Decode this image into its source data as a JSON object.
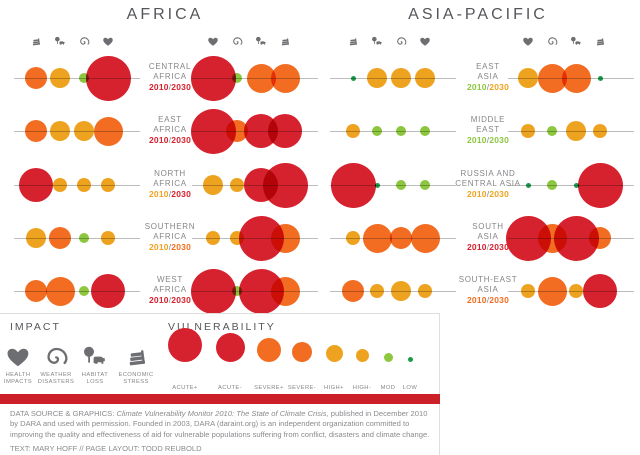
{
  "titles": {
    "africa": "AFRICA",
    "asia_pacific": "ASIA-PACIFIC"
  },
  "chart_data": {
    "type": "bubble",
    "description": "Climate vulnerability by region and impact category, 2010 vs 2030",
    "impact_categories": [
      {
        "key": "health",
        "icon": "heart-icon",
        "label": "HEALTH IMPACTS"
      },
      {
        "key": "weather",
        "icon": "spiral-icon",
        "label": "WEATHER DISASTERS"
      },
      {
        "key": "habitat",
        "icon": "habitat-loss-icon",
        "label": "HABITAT LOSS"
      },
      {
        "key": "economic",
        "icon": "economic-stress-icon",
        "label": "ECONOMIC STRESS"
      }
    ],
    "cluster_order_2010": [
      "economic",
      "habitat",
      "weather",
      "health"
    ],
    "cluster_order_2030": [
      "health",
      "weather",
      "habitat",
      "economic"
    ],
    "levels": [
      {
        "label": "ACUTE+",
        "color": "#d6212e",
        "legend_d": 34,
        "chart_d": 45
      },
      {
        "label": "ACUTE-",
        "color": "#d6212e",
        "legend_d": 29,
        "chart_d": 34
      },
      {
        "label": "SEVERE+",
        "color": "#f26d21",
        "legend_d": 24,
        "chart_d": 29
      },
      {
        "label": "SEVERE-",
        "color": "#f26d21",
        "legend_d": 20,
        "chart_d": 22
      },
      {
        "label": "HIGH+",
        "color": "#eea320",
        "legend_d": 17,
        "chart_d": 20
      },
      {
        "label": "HIGH-",
        "color": "#eea320",
        "legend_d": 13,
        "chart_d": 14
      },
      {
        "label": "MOD",
        "color": "#8dc63f",
        "legend_d": 9,
        "chart_d": 10
      },
      {
        "label": "LOW",
        "color": "#1a9b47",
        "legend_d": 5,
        "chart_d": 5
      }
    ],
    "groups": [
      {
        "title": "AFRICA",
        "regions": [
          {
            "name_lines": [
              "CENTRAL",
              "AFRICA"
            ],
            "y1": "2010",
            "y2": "2030",
            "y1_color": "#d6212e",
            "y2_color": "#d6212e",
            "v2010": [
              "SEVERE-",
              "HIGH+",
              "MOD",
              "ACUTE+"
            ],
            "v2030": [
              "ACUTE+",
              "MOD",
              "SEVERE+",
              "SEVERE+"
            ]
          },
          {
            "name_lines": [
              "EAST",
              "AFRICA"
            ],
            "y1": "2010",
            "y2": "2030",
            "y1_color": "#d6212e",
            "y2_color": "#d6212e",
            "v2010": [
              "SEVERE-",
              "HIGH+",
              "HIGH+",
              "SEVERE+"
            ],
            "v2030": [
              "ACUTE+",
              "SEVERE-",
              "ACUTE-",
              "ACUTE-"
            ]
          },
          {
            "name_lines": [
              "NORTH",
              "AFRICA"
            ],
            "y1": "2010",
            "y2": "2030",
            "y1_color": "#eea320",
            "y2_color": "#d6212e",
            "v2010": [
              "ACUTE-",
              "HIGH-",
              "HIGH-",
              "HIGH-"
            ],
            "v2030": [
              "HIGH+",
              "HIGH-",
              "ACUTE-",
              "ACUTE+"
            ]
          },
          {
            "name_lines": [
              "SOUTHERN",
              "AFRICA"
            ],
            "y1": "2010",
            "y2": "2030",
            "y1_color": "#eea320",
            "y2_color": "#f26d21",
            "v2010": [
              "HIGH+",
              "SEVERE-",
              "MOD",
              "HIGH-"
            ],
            "v2030": [
              "HIGH-",
              "HIGH-",
              "ACUTE+",
              "SEVERE+"
            ]
          },
          {
            "name_lines": [
              "WEST",
              "AFRICA"
            ],
            "y1": "2010",
            "y2": "2030",
            "y1_color": "#d6212e",
            "y2_color": "#d6212e",
            "v2010": [
              "SEVERE-",
              "SEVERE+",
              "MOD",
              "ACUTE-"
            ],
            "v2030": [
              "ACUTE+",
              "MOD",
              "ACUTE+",
              "SEVERE+"
            ]
          }
        ]
      },
      {
        "title": "ASIA-PACIFIC",
        "regions": [
          {
            "name_lines": [
              "EAST",
              "ASIA"
            ],
            "y1": "2010",
            "y2": "2030",
            "y1_color": "#8dc63f",
            "y2_color": "#eea320",
            "v2010": [
              "LOW",
              "HIGH+",
              "HIGH+",
              "HIGH+"
            ],
            "v2030": [
              "HIGH+",
              "SEVERE+",
              "SEVERE+",
              "LOW"
            ]
          },
          {
            "name_lines": [
              "MIDDLE",
              "EAST"
            ],
            "y1": "2010",
            "y2": "2030",
            "y1_color": "#8dc63f",
            "y2_color": "#8dc63f",
            "v2010": [
              "HIGH-",
              "MOD",
              "MOD",
              "MOD"
            ],
            "v2030": [
              "HIGH-",
              "MOD",
              "HIGH+",
              "HIGH-"
            ]
          },
          {
            "name_lines": [
              "RUSSIA AND",
              "CENTRAL ASIA"
            ],
            "y1": "2010",
            "y2": "2030",
            "y1_color": "#eea320",
            "y2_color": "#eea320",
            "v2010": [
              "ACUTE+",
              "LOW",
              "MOD",
              "MOD"
            ],
            "v2030": [
              "LOW",
              "MOD",
              "LOW",
              "ACUTE+"
            ]
          },
          {
            "name_lines": [
              "SOUTH",
              "ASIA"
            ],
            "y1": "2010",
            "y2": "2030",
            "y1_color": "#d6212e",
            "y2_color": "#d6212e",
            "v2010": [
              "HIGH-",
              "SEVERE+",
              "SEVERE-",
              "SEVERE+"
            ],
            "v2030": [
              "ACUTE+",
              "SEVERE+",
              "ACUTE+",
              "SEVERE-"
            ]
          },
          {
            "name_lines": [
              "SOUTH-EAST",
              "ASIA"
            ],
            "y1": "2010",
            "y2": "2030",
            "y1_color": "#f26d21",
            "y2_color": "#f26d21",
            "v2010": [
              "SEVERE-",
              "HIGH-",
              "HIGH+",
              "HIGH-"
            ],
            "v2030": [
              "HIGH-",
              "SEVERE+",
              "HIGH-",
              "ACUTE-"
            ]
          }
        ]
      }
    ]
  },
  "legend": {
    "impact_title": "IMPACT",
    "vulnerability_title": "VULNERABILITY",
    "impact_items": [
      {
        "icon": "heart-icon",
        "label_lines": "HEALTH\nIMPACTS"
      },
      {
        "icon": "spiral-icon",
        "label_lines": "WEATHER\nDISASTERS"
      },
      {
        "icon": "habitat-loss-icon",
        "label_lines": "HABITAT\nLOSS"
      },
      {
        "icon": "economic-stress-icon",
        "label_lines": "ECONOMIC\nSTRESS"
      }
    ]
  },
  "footer": {
    "credit_prefix": "DATA SOURCE & GRAPHICS: ",
    "credit_italic": "Climate Vulnerability Monitor 2010: The State of Climate Crisis,",
    "credit_rest": " published in December 2010 by DARA and used with permission. Founded in 2003, DARA (daraint.org) is an independent organization committed to improving the quality and effectiveness of aid for vulnerable populations suffering from conflict, disasters and climate change.",
    "byline": "TEXT: MARY HOFF  //  PAGE LAYOUT: TODD REUBOLD"
  }
}
